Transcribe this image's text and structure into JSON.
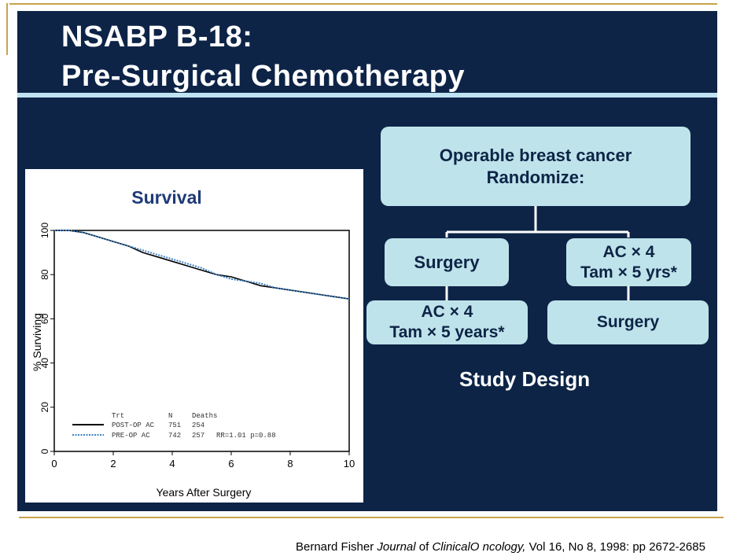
{
  "slide": {
    "title_line1": "NSABP B-18:",
    "title_line2": "Pre-Surgical Chemotherapy",
    "colors": {
      "background": "#0d2447",
      "accent_rule": "#bfe3f2",
      "box": "#bfe3ea",
      "gold_rule": "#c9a34a"
    }
  },
  "chart_data": {
    "type": "line",
    "title": "Survival",
    "xlabel": "Years After Surgery",
    "ylabel": "% Surviving",
    "xlim": [
      0,
      10
    ],
    "ylim": [
      0,
      100
    ],
    "xticks": [
      "0",
      "2",
      "4",
      "6",
      "8",
      "10"
    ],
    "yticks": [
      "0",
      "20",
      "40",
      "60",
      "80",
      "100"
    ],
    "legend": {
      "headers": [
        "Trt",
        "N",
        "Deaths"
      ],
      "rows": [
        {
          "trt": "POST-OP AC",
          "n": "751",
          "deaths": "254"
        },
        {
          "trt": "PRE-OP AC",
          "n": "742",
          "deaths": "257",
          "extra": "RR=1.01  p=0.88"
        }
      ]
    },
    "series": [
      {
        "name": "POST-OP AC",
        "color": "#000000",
        "style": "solid",
        "x": [
          0,
          0.5,
          1,
          1.5,
          2,
          2.5,
          3,
          3.5,
          4,
          4.5,
          5,
          5.5,
          6,
          6.5,
          7,
          7.5,
          8,
          8.5,
          9,
          9.5,
          10
        ],
        "y": [
          100,
          100,
          99,
          97,
          95,
          93,
          90,
          88,
          86,
          84,
          82,
          80,
          79,
          77,
          75,
          74,
          73,
          72,
          71,
          70,
          69
        ]
      },
      {
        "name": "PRE-OP AC",
        "color": "#3a7fc4",
        "style": "dotted",
        "x": [
          0,
          0.5,
          1,
          1.5,
          2,
          2.5,
          3,
          3.5,
          4,
          4.5,
          5,
          5.5,
          6,
          6.5,
          7,
          7.5,
          8,
          8.5,
          9,
          9.5,
          10
        ],
        "y": [
          100,
          100,
          99,
          97,
          95,
          93,
          91,
          89,
          87,
          85,
          83,
          80,
          78,
          77,
          76,
          74,
          73,
          72,
          71,
          70,
          69
        ]
      }
    ]
  },
  "diagram": {
    "root": {
      "line1": "Operable breast cancer",
      "line2": "Randomize:"
    },
    "left_arm": {
      "step1": "Surgery",
      "step2_line1": "AC × 4",
      "step2_line2": "Tam × 5 years*"
    },
    "right_arm": {
      "step1_line1": "AC × 4",
      "step1_line2": "Tam × 5 yrs*",
      "step2": "Surgery"
    },
    "caption": "Study Design"
  },
  "citation": {
    "author": "Bernard Fisher",
    "journal_word": "Journal",
    "of_word": "of",
    "journal_name": "ClinicalO ncology,",
    "details": "Vol 16, No 8, 1998: pp 2672-2685"
  }
}
